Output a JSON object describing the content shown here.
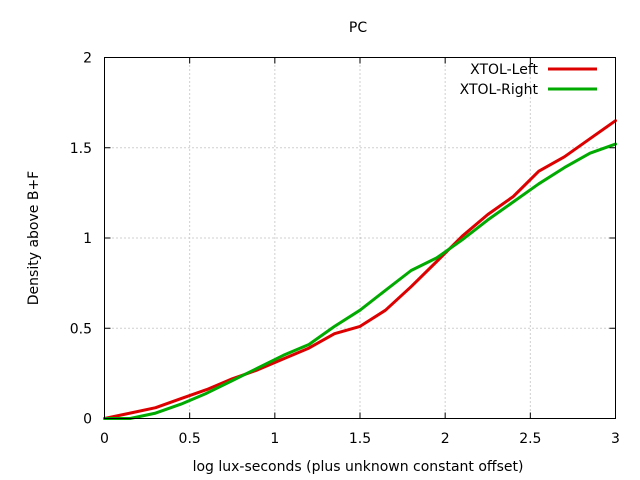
{
  "chart_data": {
    "type": "line",
    "title": "PC",
    "xlabel": "log lux-seconds (plus unknown constant offset)",
    "ylabel": "Density above B+F",
    "xlim": [
      0,
      3
    ],
    "ylim": [
      0,
      2
    ],
    "x_ticks": [
      "0",
      "0.5",
      "1",
      "1.5",
      "2",
      "2.5",
      "3"
    ],
    "y_ticks": [
      "0",
      "0.5",
      "1",
      "1.5",
      "2"
    ],
    "grid": true,
    "legend_position": "top-right",
    "series": [
      {
        "name": "XTOL-Left",
        "color": "#dd0000",
        "x": [
          0,
          0.15,
          0.3,
          0.45,
          0.6,
          0.75,
          0.9,
          1.05,
          1.2,
          1.35,
          1.5,
          1.65,
          1.8,
          1.95,
          2.1,
          2.25,
          2.4,
          2.55,
          2.7,
          2.85,
          3.0
        ],
        "y": [
          0,
          0.03,
          0.06,
          0.11,
          0.16,
          0.22,
          0.27,
          0.33,
          0.39,
          0.47,
          0.51,
          0.6,
          0.73,
          0.87,
          1.01,
          1.13,
          1.23,
          1.37,
          1.45,
          1.55,
          1.65
        ]
      },
      {
        "name": "XTOL-Right",
        "color": "#00aa00",
        "x": [
          0,
          0.15,
          0.3,
          0.45,
          0.6,
          0.75,
          0.9,
          1.05,
          1.2,
          1.35,
          1.5,
          1.65,
          1.8,
          1.95,
          2.1,
          2.25,
          2.4,
          2.55,
          2.7,
          2.85,
          3.0
        ],
        "y": [
          0,
          0.0,
          0.03,
          0.08,
          0.14,
          0.21,
          0.28,
          0.35,
          0.41,
          0.51,
          0.6,
          0.71,
          0.82,
          0.89,
          0.99,
          1.1,
          1.2,
          1.3,
          1.39,
          1.47,
          1.52
        ]
      }
    ]
  }
}
